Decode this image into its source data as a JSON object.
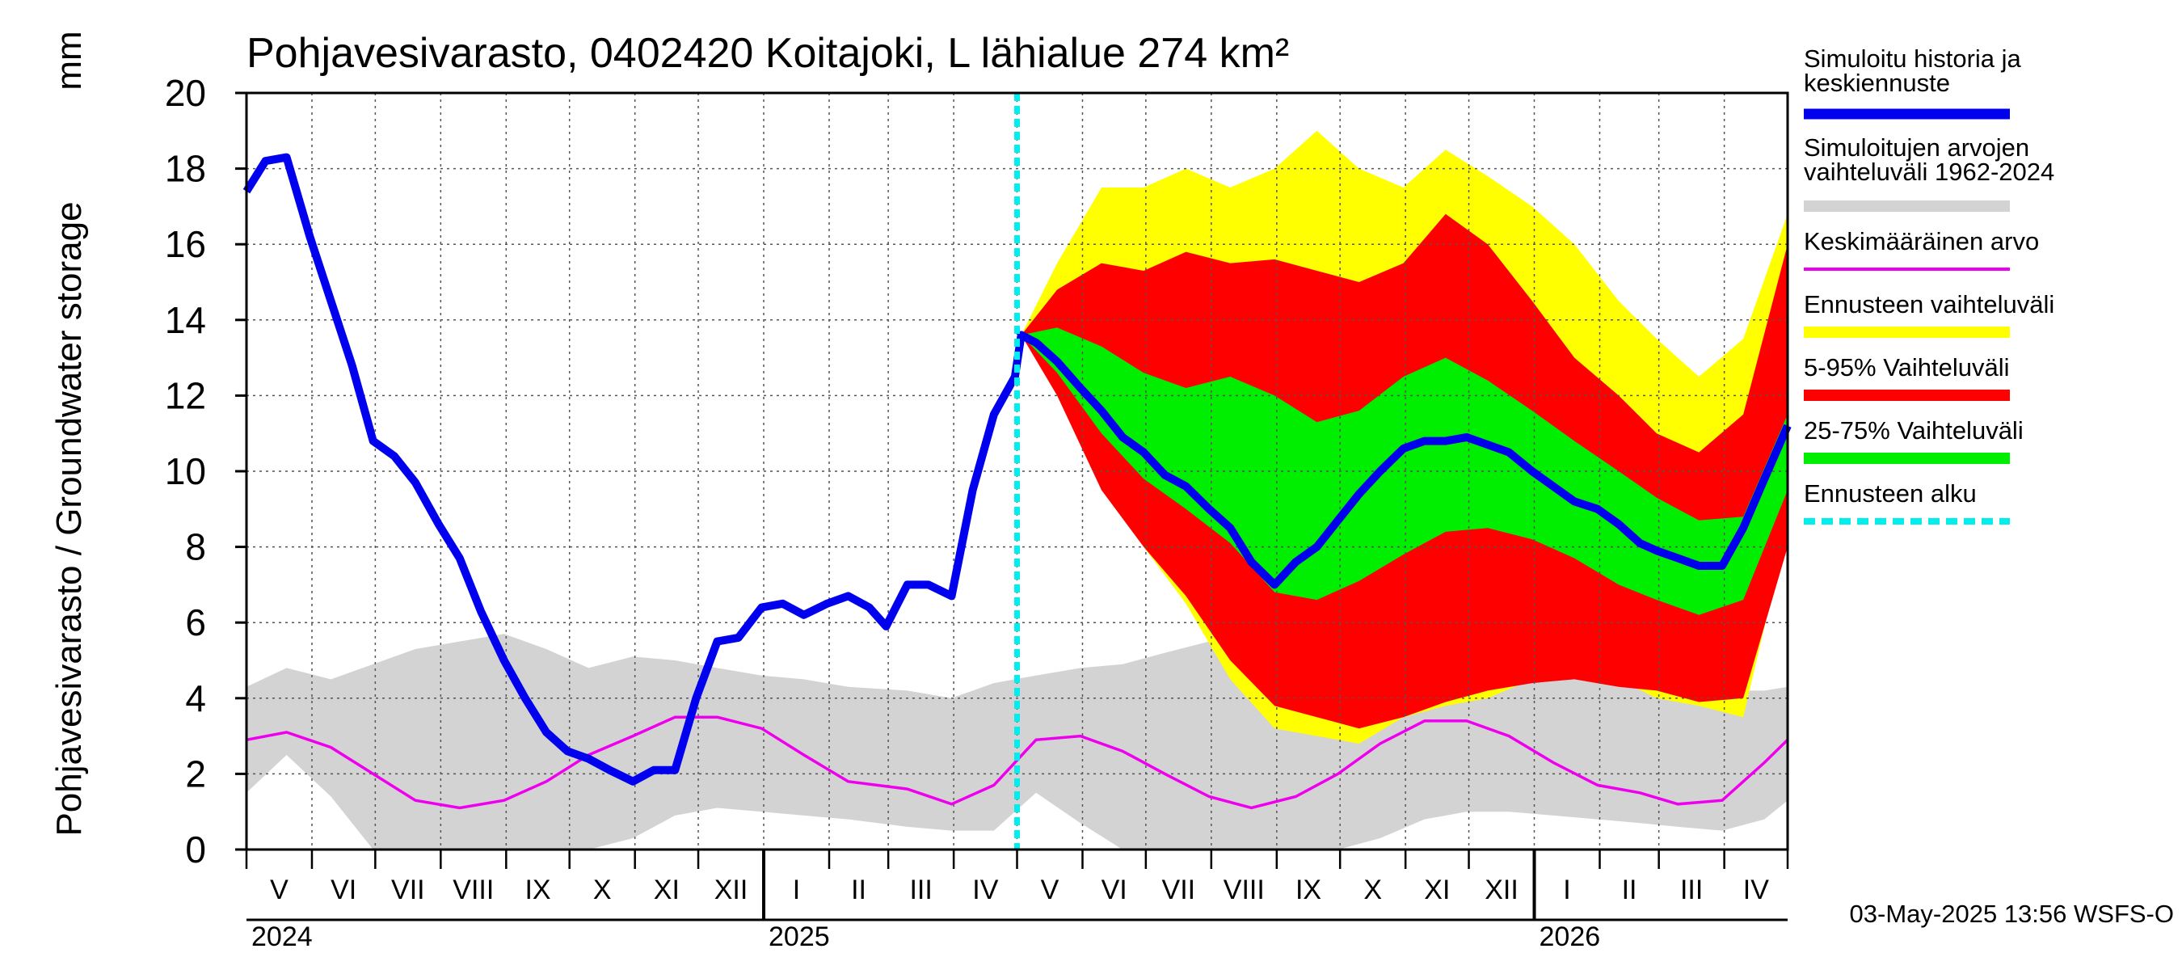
{
  "title": "Pohjavesivarasto, 0402420 Koitajoki, L lähialue 274 km²",
  "y_axis": {
    "label": "Pohjavesivarasto / Groundwater storage",
    "unit": "mm",
    "ticks": [
      "0",
      "2",
      "4",
      "6",
      "8",
      "10",
      "12",
      "14",
      "16",
      "18",
      "20"
    ]
  },
  "x_axis": {
    "months": [
      "V",
      "VI",
      "VII",
      "VIII",
      "IX",
      "X",
      "XI",
      "XII",
      "I",
      "II",
      "III",
      "IV",
      "V",
      "VI",
      "VII",
      "VIII",
      "IX",
      "X",
      "XI",
      "XII",
      "I",
      "II",
      "III",
      "IV"
    ],
    "years": [
      "2024",
      "2025",
      "2026"
    ]
  },
  "legend": [
    {
      "label": "Simuloitu historia ja keskiennuste",
      "color": "#0000ee",
      "style": "thick-line"
    },
    {
      "label": "Simuloitujen arvojen vaihteluväli 1962-2024",
      "color": "#d3d3d3",
      "style": "band"
    },
    {
      "label": "Keskimääräinen arvo",
      "color": "#ee00ee",
      "style": "thin-line"
    },
    {
      "label": "Ennusteen vaihteluväli",
      "color": "#ffff00",
      "style": "band"
    },
    {
      "label": "5-95% Vaihteluväli",
      "color": "#ff0000",
      "style": "band"
    },
    {
      "label": "25-75% Vaihteluväli",
      "color": "#00ee00",
      "style": "band"
    },
    {
      "label": "Ennusteen alku",
      "color": "#00eeee",
      "style": "dashed"
    }
  ],
  "footer": "03-May-2025 13:56 WSFS-O",
  "chart_data": {
    "type": "area",
    "ylim": [
      0,
      20
    ],
    "x_range": [
      "2024-05-01",
      "2026-05-01"
    ],
    "forecast_start": "2025-05-01",
    "series": [
      {
        "name": "Simuloitu historia ja keskiennuste",
        "color": "#0000ee",
        "points": [
          [
            "2024-05-01",
            17.4
          ],
          [
            "2024-05-10",
            18.2
          ],
          [
            "2024-05-20",
            18.3
          ],
          [
            "2024-05-31",
            16.2
          ],
          [
            "2024-06-10",
            14.5
          ],
          [
            "2024-06-20",
            12.8
          ],
          [
            "2024-06-30",
            10.8
          ],
          [
            "2024-07-10",
            10.4
          ],
          [
            "2024-07-20",
            9.7
          ],
          [
            "2024-07-31",
            8.6
          ],
          [
            "2024-08-10",
            7.7
          ],
          [
            "2024-08-20",
            6.3
          ],
          [
            "2024-08-31",
            5.0
          ],
          [
            "2024-09-10",
            4.0
          ],
          [
            "2024-09-20",
            3.1
          ],
          [
            "2024-09-30",
            2.6
          ],
          [
            "2024-10-10",
            2.4
          ],
          [
            "2024-10-20",
            2.1
          ],
          [
            "2024-10-31",
            1.8
          ],
          [
            "2024-11-10",
            2.1
          ],
          [
            "2024-11-20",
            2.1
          ],
          [
            "2024-11-30",
            4.0
          ],
          [
            "2024-12-10",
            5.5
          ],
          [
            "2024-12-20",
            5.6
          ],
          [
            "2024-12-31",
            6.4
          ],
          [
            "2025-01-10",
            6.5
          ],
          [
            "2025-01-20",
            6.2
          ],
          [
            "2025-01-31",
            6.5
          ],
          [
            "2025-02-10",
            6.7
          ],
          [
            "2025-02-20",
            6.4
          ],
          [
            "2025-02-28",
            5.9
          ],
          [
            "2025-03-10",
            7.0
          ],
          [
            "2025-03-20",
            7.0
          ],
          [
            "2025-03-31",
            6.7
          ],
          [
            "2025-04-10",
            9.5
          ],
          [
            "2025-04-20",
            11.5
          ],
          [
            "2025-04-30",
            12.5
          ],
          [
            "2025-05-03",
            13.6
          ],
          [
            "2025-05-10",
            13.4
          ],
          [
            "2025-05-20",
            12.9
          ],
          [
            "2025-05-31",
            12.2
          ],
          [
            "2025-06-10",
            11.6
          ],
          [
            "2025-06-20",
            10.9
          ],
          [
            "2025-06-30",
            10.5
          ],
          [
            "2025-07-10",
            9.9
          ],
          [
            "2025-07-20",
            9.6
          ],
          [
            "2025-07-31",
            9.0
          ],
          [
            "2025-08-10",
            8.5
          ],
          [
            "2025-08-20",
            7.6
          ],
          [
            "2025-08-31",
            7.0
          ],
          [
            "2025-09-10",
            7.6
          ],
          [
            "2025-09-20",
            8.0
          ],
          [
            "2025-09-30",
            8.7
          ],
          [
            "2025-10-10",
            9.4
          ],
          [
            "2025-10-20",
            10.0
          ],
          [
            "2025-10-31",
            10.6
          ],
          [
            "2025-11-10",
            10.8
          ],
          [
            "2025-11-20",
            10.8
          ],
          [
            "2025-11-30",
            10.9
          ],
          [
            "2025-12-10",
            10.7
          ],
          [
            "2025-12-20",
            10.5
          ],
          [
            "2025-12-31",
            10.0
          ],
          [
            "2026-01-10",
            9.6
          ],
          [
            "2026-01-20",
            9.2
          ],
          [
            "2026-01-31",
            9.0
          ],
          [
            "2026-02-10",
            8.6
          ],
          [
            "2026-02-20",
            8.1
          ],
          [
            "2026-02-28",
            7.9
          ],
          [
            "2026-03-10",
            7.7
          ],
          [
            "2026-03-20",
            7.5
          ],
          [
            "2026-03-31",
            7.5
          ],
          [
            "2026-04-10",
            8.5
          ],
          [
            "2026-04-20",
            9.8
          ],
          [
            "2026-05-01",
            11.2
          ]
        ]
      },
      {
        "name": "Keskimääräinen arvo",
        "color": "#ee00ee",
        "points": [
          [
            "2024-05-01",
            2.9
          ],
          [
            "2024-05-20",
            3.1
          ],
          [
            "2024-06-10",
            2.7
          ],
          [
            "2024-06-30",
            2.0
          ],
          [
            "2024-07-20",
            1.3
          ],
          [
            "2024-08-10",
            1.1
          ],
          [
            "2024-08-31",
            1.3
          ],
          [
            "2024-09-20",
            1.8
          ],
          [
            "2024-10-10",
            2.5
          ],
          [
            "2024-10-31",
            3.0
          ],
          [
            "2024-11-20",
            3.5
          ],
          [
            "2024-12-10",
            3.5
          ],
          [
            "2024-12-31",
            3.2
          ],
          [
            "2025-01-20",
            2.5
          ],
          [
            "2025-02-10",
            1.8
          ],
          [
            "2025-03-10",
            1.6
          ],
          [
            "2025-03-31",
            1.2
          ],
          [
            "2025-04-20",
            1.7
          ],
          [
            "2025-05-10",
            2.9
          ],
          [
            "2025-05-31",
            3.0
          ],
          [
            "2025-06-20",
            2.6
          ],
          [
            "2025-07-10",
            2.0
          ],
          [
            "2025-07-31",
            1.4
          ],
          [
            "2025-08-20",
            1.1
          ],
          [
            "2025-09-10",
            1.4
          ],
          [
            "2025-09-30",
            2.0
          ],
          [
            "2025-10-20",
            2.8
          ],
          [
            "2025-11-10",
            3.4
          ],
          [
            "2025-11-30",
            3.4
          ],
          [
            "2025-12-20",
            3.0
          ],
          [
            "2026-01-10",
            2.3
          ],
          [
            "2026-01-31",
            1.7
          ],
          [
            "2026-02-20",
            1.5
          ],
          [
            "2026-03-10",
            1.2
          ],
          [
            "2026-03-31",
            1.3
          ],
          [
            "2026-04-20",
            2.3
          ],
          [
            "2026-05-01",
            2.9
          ]
        ]
      }
    ],
    "bands": [
      {
        "name": "Simuloitujen arvojen vaihteluväli 1962-2024",
        "color": "#d3d3d3",
        "points": [
          [
            "2024-05-01",
            1.5,
            4.3
          ],
          [
            "2024-05-20",
            2.5,
            4.8
          ],
          [
            "2024-06-10",
            1.4,
            4.5
          ],
          [
            "2024-06-30",
            0.0,
            4.9
          ],
          [
            "2024-07-20",
            0.0,
            5.3
          ],
          [
            "2024-08-10",
            0.0,
            5.5
          ],
          [
            "2024-08-31",
            0.0,
            5.7
          ],
          [
            "2024-09-20",
            0.0,
            5.3
          ],
          [
            "2024-10-10",
            0.0,
            4.8
          ],
          [
            "2024-10-31",
            0.3,
            5.1
          ],
          [
            "2024-11-20",
            0.9,
            5.0
          ],
          [
            "2024-12-10",
            1.1,
            4.8
          ],
          [
            "2024-12-31",
            1.0,
            4.6
          ],
          [
            "2025-01-20",
            0.9,
            4.5
          ],
          [
            "2025-02-10",
            0.8,
            4.3
          ],
          [
            "2025-03-10",
            0.6,
            4.2
          ],
          [
            "2025-03-31",
            0.5,
            4.0
          ],
          [
            "2025-04-20",
            0.5,
            4.4
          ],
          [
            "2025-05-10",
            1.5,
            4.6
          ],
          [
            "2025-05-31",
            0.7,
            4.8
          ],
          [
            "2025-06-20",
            0.0,
            4.9
          ],
          [
            "2025-07-10",
            0.0,
            5.2
          ],
          [
            "2025-07-31",
            0.0,
            5.5
          ],
          [
            "2025-08-20",
            0.0,
            5.8
          ],
          [
            "2025-09-10",
            0.0,
            5.9
          ],
          [
            "2025-09-30",
            0.0,
            5.6
          ],
          [
            "2025-10-20",
            0.3,
            5.2
          ],
          [
            "2025-11-10",
            0.8,
            5.1
          ],
          [
            "2025-11-30",
            1.0,
            5.0
          ],
          [
            "2025-12-20",
            1.0,
            4.8
          ],
          [
            "2026-01-10",
            0.9,
            4.7
          ],
          [
            "2026-01-31",
            0.8,
            4.5
          ],
          [
            "2026-02-20",
            0.7,
            4.3
          ],
          [
            "2026-03-10",
            0.6,
            4.2
          ],
          [
            "2026-03-31",
            0.5,
            4.2
          ],
          [
            "2026-04-20",
            0.8,
            4.2
          ],
          [
            "2026-05-01",
            1.3,
            4.3
          ]
        ]
      },
      {
        "name": "Ennusteen vaihteluväli",
        "color": "#ffff00",
        "points": [
          [
            "2025-05-03",
            13.6,
            13.6
          ],
          [
            "2025-05-20",
            12.5,
            15.5
          ],
          [
            "2025-06-10",
            10.0,
            17.5
          ],
          [
            "2025-06-30",
            8.0,
            17.5
          ],
          [
            "2025-07-20",
            6.5,
            18.0
          ],
          [
            "2025-08-10",
            4.5,
            17.5
          ],
          [
            "2025-08-31",
            3.2,
            18.0
          ],
          [
            "2025-09-20",
            3.0,
            19.0
          ],
          [
            "2025-10-10",
            2.8,
            18.0
          ],
          [
            "2025-10-31",
            3.5,
            17.5
          ],
          [
            "2025-11-20",
            3.8,
            18.5
          ],
          [
            "2025-12-10",
            4.0,
            17.8
          ],
          [
            "2025-12-31",
            4.5,
            17.0
          ],
          [
            "2026-01-20",
            4.5,
            16.0
          ],
          [
            "2026-02-10",
            4.5,
            14.5
          ],
          [
            "2026-02-28",
            4.0,
            13.5
          ],
          [
            "2026-03-20",
            3.8,
            12.5
          ],
          [
            "2026-04-10",
            3.5,
            13.5
          ],
          [
            "2026-05-01",
            8.5,
            16.8
          ]
        ]
      },
      {
        "name": "5-95% Vaihteluväli",
        "color": "#ff0000",
        "points": [
          [
            "2025-05-03",
            13.6,
            13.6
          ],
          [
            "2025-05-20",
            12.0,
            14.8
          ],
          [
            "2025-06-10",
            9.5,
            15.5
          ],
          [
            "2025-06-30",
            8.0,
            15.3
          ],
          [
            "2025-07-20",
            6.7,
            15.8
          ],
          [
            "2025-08-10",
            5.0,
            15.5
          ],
          [
            "2025-08-31",
            3.8,
            15.6
          ],
          [
            "2025-09-20",
            3.5,
            15.3
          ],
          [
            "2025-10-10",
            3.2,
            15.0
          ],
          [
            "2025-10-31",
            3.5,
            15.5
          ],
          [
            "2025-11-20",
            3.9,
            16.8
          ],
          [
            "2025-12-10",
            4.2,
            16.0
          ],
          [
            "2025-12-31",
            4.4,
            14.5
          ],
          [
            "2026-01-20",
            4.5,
            13.0
          ],
          [
            "2026-02-10",
            4.3,
            12.0
          ],
          [
            "2026-02-28",
            4.2,
            11.0
          ],
          [
            "2026-03-20",
            3.9,
            10.5
          ],
          [
            "2026-04-10",
            4.0,
            11.5
          ],
          [
            "2026-05-01",
            8.0,
            16.0
          ]
        ]
      },
      {
        "name": "25-75% Vaihteluväli",
        "color": "#00ee00",
        "points": [
          [
            "2025-05-03",
            13.6,
            13.6
          ],
          [
            "2025-05-20",
            12.6,
            13.8
          ],
          [
            "2025-06-10",
            11.0,
            13.3
          ],
          [
            "2025-06-30",
            9.8,
            12.6
          ],
          [
            "2025-07-20",
            9.0,
            12.2
          ],
          [
            "2025-08-10",
            8.1,
            12.5
          ],
          [
            "2025-08-31",
            6.8,
            12.0
          ],
          [
            "2025-09-20",
            6.6,
            11.3
          ],
          [
            "2025-10-10",
            7.1,
            11.6
          ],
          [
            "2025-10-31",
            7.8,
            12.5
          ],
          [
            "2025-11-20",
            8.4,
            13.0
          ],
          [
            "2025-12-10",
            8.5,
            12.4
          ],
          [
            "2025-12-31",
            8.2,
            11.6
          ],
          [
            "2026-01-20",
            7.7,
            10.8
          ],
          [
            "2026-02-10",
            7.0,
            10.0
          ],
          [
            "2026-02-28",
            6.6,
            9.3
          ],
          [
            "2026-03-20",
            6.2,
            8.7
          ],
          [
            "2026-04-10",
            6.6,
            8.8
          ],
          [
            "2026-05-01",
            9.5,
            11.5
          ]
        ]
      }
    ]
  }
}
